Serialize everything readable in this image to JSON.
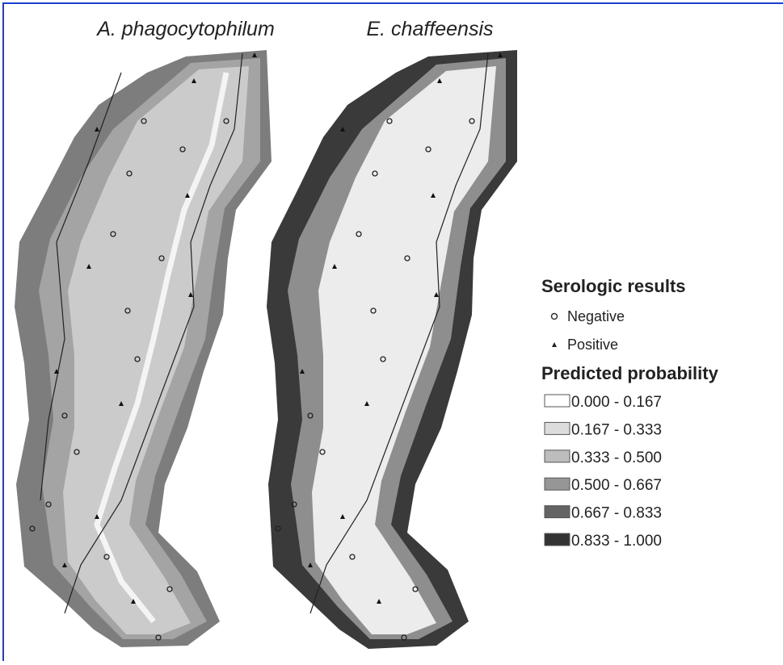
{
  "maps": [
    {
      "title": "A. phagocytophilum"
    },
    {
      "title": "E. chaffeensis"
    }
  ],
  "legend": {
    "serologic_title": "Serologic results",
    "serologic_items": [
      "Negative",
      "Positive"
    ],
    "probability_title": "Predicted probability",
    "probability_classes": [
      "0.000 - 0.167",
      "0.167 - 0.333",
      "0.333 - 0.500",
      "0.500 - 0.667",
      "0.667 - 0.833",
      "0.833 - 1.000"
    ]
  }
}
